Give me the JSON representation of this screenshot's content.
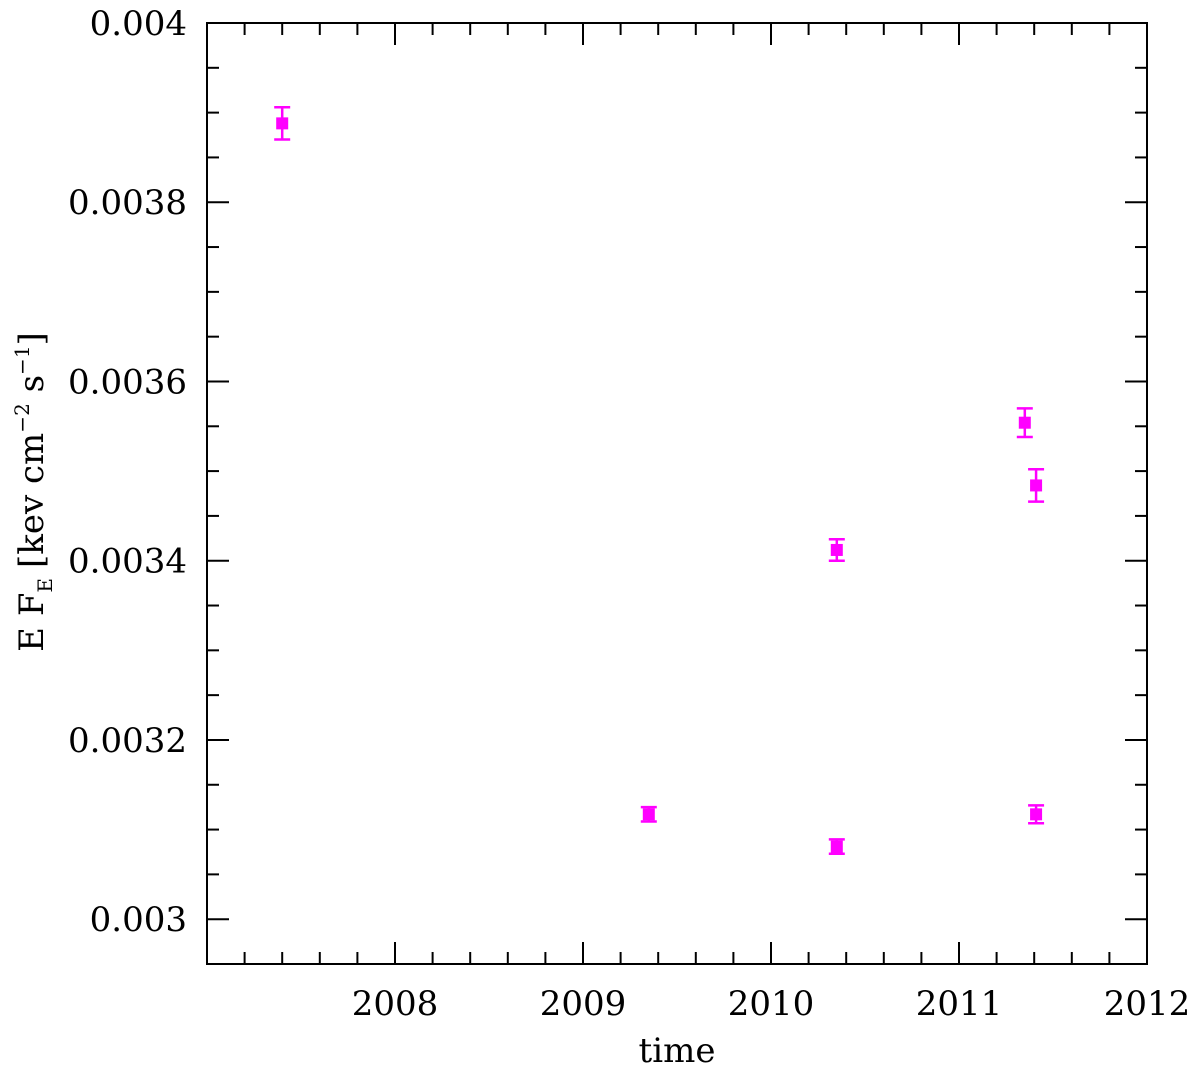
{
  "chart_data": {
    "type": "scatter",
    "xlabel": "time",
    "ylabel": {
      "prefix": "E F",
      "subscript": "E",
      "bracket_open": "[",
      "unit_1": "kev cm",
      "exp_1": "−2",
      "unit_2": " s",
      "exp_2": "−1",
      "bracket_close": "]"
    },
    "xlim": [
      2007.0,
      2012.0
    ],
    "ylim": [
      0.00295,
      0.004
    ],
    "x_ticks": [
      2008,
      2009,
      2010,
      2011,
      2012
    ],
    "x_tick_labels": [
      "2008",
      "2009",
      "2010",
      "2011",
      "2012"
    ],
    "y_ticks": [
      0.003,
      0.0032,
      0.0034,
      0.0036,
      0.0038,
      0.004
    ],
    "y_tick_labels": [
      "0.003",
      "0.0032",
      "0.0034",
      "0.0036",
      "0.0038",
      "0.004"
    ],
    "grid": false,
    "marker_color": "#ff00ff",
    "series": [
      {
        "x": [
          2007.4,
          2009.35,
          2010.35,
          2010.35,
          2011.35,
          2011.41,
          2011.41
        ],
        "y": [
          0.003888,
          0.003117,
          0.003081,
          0.003412,
          0.003554,
          0.003484,
          0.003117
        ],
        "yerr": [
          1.8e-05,
          8e-06,
          8e-06,
          1.2e-05,
          1.6e-05,
          1.8e-05,
          1e-05
        ]
      }
    ]
  }
}
